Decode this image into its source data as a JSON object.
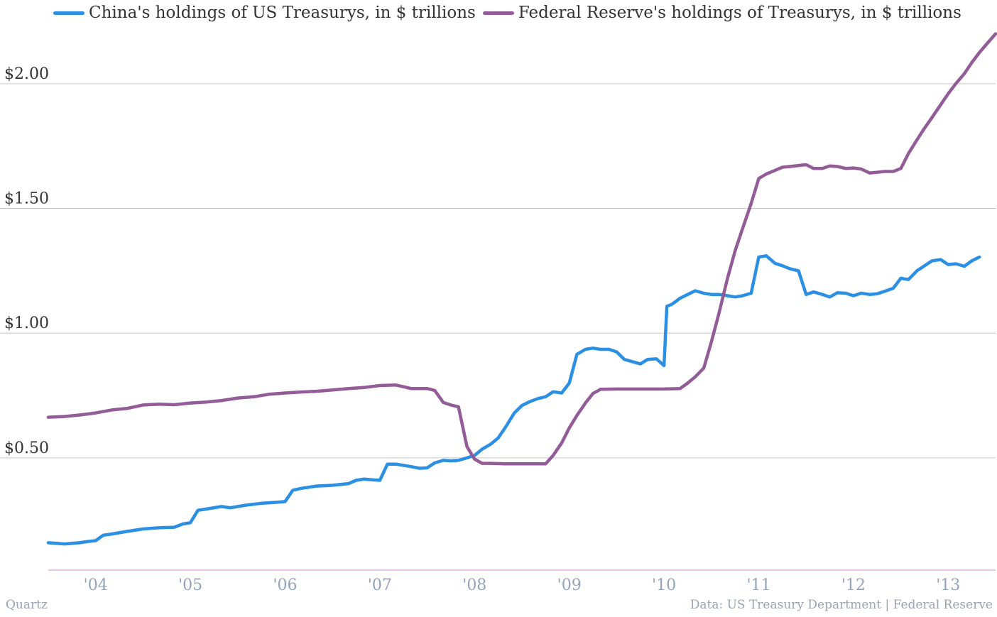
{
  "legend": {
    "china": "China's holdings of US Treasurys, in $ trillions",
    "fed": "Federal Reserve's holdings of Treasurys, in $ trillions"
  },
  "footer": {
    "source_left": "Quartz",
    "source_right": "Data: US Treasury Department | Federal Reserve"
  },
  "colors": {
    "china": "#2b8fe3",
    "fed": "#935c99",
    "grid": "#c6c6c6",
    "baseline": "#d98bd9"
  },
  "chart_data": {
    "type": "line",
    "xlabel": "",
    "ylabel": "",
    "xlim": [
      2003.5,
      2013.5
    ],
    "ylim": [
      0.05,
      2.25
    ],
    "yticks": [
      0.5,
      1.0,
      1.5,
      2.0
    ],
    "ytick_labels": [
      "$0.50",
      "$1.00",
      "$1.50",
      "$2.00"
    ],
    "xticks": [
      2004,
      2005,
      2006,
      2007,
      2008,
      2009,
      2010,
      2011,
      2012,
      2013
    ],
    "xtick_labels": [
      "'04",
      "'05",
      "'06",
      "'07",
      "'08",
      "'09",
      "'10",
      "'11",
      "'12",
      "'13"
    ],
    "grid": true,
    "legend_position": "top-left",
    "series": [
      {
        "name": "China's holdings of US Treasurys, in $ trillions",
        "color": "#2b8fe3",
        "points": [
          [
            2003.5,
            0.16
          ],
          [
            2003.67,
            0.155
          ],
          [
            2003.83,
            0.16
          ],
          [
            2003.92,
            0.165
          ],
          [
            2004.0,
            0.168
          ],
          [
            2004.08,
            0.19
          ],
          [
            2004.17,
            0.195
          ],
          [
            2004.33,
            0.205
          ],
          [
            2004.5,
            0.215
          ],
          [
            2004.67,
            0.22
          ],
          [
            2004.83,
            0.222
          ],
          [
            2004.92,
            0.235
          ],
          [
            2005.0,
            0.24
          ],
          [
            2005.08,
            0.29
          ],
          [
            2005.17,
            0.295
          ],
          [
            2005.33,
            0.305
          ],
          [
            2005.42,
            0.3
          ],
          [
            2005.58,
            0.31
          ],
          [
            2005.75,
            0.318
          ],
          [
            2005.92,
            0.322
          ],
          [
            2006.0,
            0.325
          ],
          [
            2006.08,
            0.37
          ],
          [
            2006.17,
            0.378
          ],
          [
            2006.33,
            0.387
          ],
          [
            2006.5,
            0.39
          ],
          [
            2006.67,
            0.397
          ],
          [
            2006.75,
            0.41
          ],
          [
            2006.83,
            0.415
          ],
          [
            2006.92,
            0.412
          ],
          [
            2007.0,
            0.41
          ],
          [
            2007.08,
            0.475
          ],
          [
            2007.17,
            0.475
          ],
          [
            2007.33,
            0.465
          ],
          [
            2007.42,
            0.458
          ],
          [
            2007.5,
            0.46
          ],
          [
            2007.58,
            0.48
          ],
          [
            2007.67,
            0.49
          ],
          [
            2007.75,
            0.488
          ],
          [
            2007.83,
            0.49
          ],
          [
            2007.92,
            0.5
          ],
          [
            2008.0,
            0.51
          ],
          [
            2008.08,
            0.535
          ],
          [
            2008.17,
            0.555
          ],
          [
            2008.25,
            0.58
          ],
          [
            2008.33,
            0.625
          ],
          [
            2008.42,
            0.68
          ],
          [
            2008.5,
            0.71
          ],
          [
            2008.58,
            0.725
          ],
          [
            2008.67,
            0.738
          ],
          [
            2008.75,
            0.745
          ],
          [
            2008.83,
            0.765
          ],
          [
            2008.92,
            0.76
          ],
          [
            2009.0,
            0.8
          ],
          [
            2009.08,
            0.915
          ],
          [
            2009.17,
            0.935
          ],
          [
            2009.25,
            0.94
          ],
          [
            2009.33,
            0.935
          ],
          [
            2009.42,
            0.935
          ],
          [
            2009.5,
            0.925
          ],
          [
            2009.58,
            0.895
          ],
          [
            2009.67,
            0.885
          ],
          [
            2009.75,
            0.877
          ],
          [
            2009.83,
            0.895
          ],
          [
            2009.92,
            0.897
          ],
          [
            2010.0,
            0.87
          ],
          [
            2010.03,
            1.108
          ],
          [
            2010.08,
            1.115
          ],
          [
            2010.17,
            1.14
          ],
          [
            2010.25,
            1.155
          ],
          [
            2010.33,
            1.17
          ],
          [
            2010.42,
            1.16
          ],
          [
            2010.5,
            1.155
          ],
          [
            2010.58,
            1.155
          ],
          [
            2010.67,
            1.15
          ],
          [
            2010.75,
            1.145
          ],
          [
            2010.83,
            1.15
          ],
          [
            2010.92,
            1.16
          ],
          [
            2011.0,
            1.305
          ],
          [
            2011.08,
            1.31
          ],
          [
            2011.17,
            1.28
          ],
          [
            2011.25,
            1.27
          ],
          [
            2011.33,
            1.258
          ],
          [
            2011.42,
            1.25
          ],
          [
            2011.5,
            1.155
          ],
          [
            2011.58,
            1.165
          ],
          [
            2011.67,
            1.155
          ],
          [
            2011.75,
            1.145
          ],
          [
            2011.83,
            1.162
          ],
          [
            2011.92,
            1.16
          ],
          [
            2012.0,
            1.15
          ],
          [
            2012.08,
            1.16
          ],
          [
            2012.17,
            1.155
          ],
          [
            2012.25,
            1.158
          ],
          [
            2012.33,
            1.168
          ],
          [
            2012.42,
            1.18
          ],
          [
            2012.5,
            1.22
          ],
          [
            2012.58,
            1.215
          ],
          [
            2012.67,
            1.25
          ],
          [
            2012.75,
            1.27
          ],
          [
            2012.83,
            1.29
          ],
          [
            2012.92,
            1.295
          ],
          [
            2013.0,
            1.275
          ],
          [
            2013.08,
            1.278
          ],
          [
            2013.17,
            1.268
          ],
          [
            2013.25,
            1.29
          ],
          [
            2013.33,
            1.305
          ]
        ]
      },
      {
        "name": "Federal Reserve's holdings of Treasurys, in $ trillions",
        "color": "#935c99",
        "points": [
          [
            2003.5,
            0.663
          ],
          [
            2003.67,
            0.666
          ],
          [
            2003.83,
            0.672
          ],
          [
            2004.0,
            0.68
          ],
          [
            2004.17,
            0.692
          ],
          [
            2004.33,
            0.698
          ],
          [
            2004.5,
            0.712
          ],
          [
            2004.67,
            0.715
          ],
          [
            2004.83,
            0.713
          ],
          [
            2005.0,
            0.72
          ],
          [
            2005.17,
            0.724
          ],
          [
            2005.33,
            0.73
          ],
          [
            2005.5,
            0.74
          ],
          [
            2005.67,
            0.745
          ],
          [
            2005.83,
            0.755
          ],
          [
            2006.0,
            0.76
          ],
          [
            2006.17,
            0.764
          ],
          [
            2006.33,
            0.767
          ],
          [
            2006.5,
            0.772
          ],
          [
            2006.67,
            0.778
          ],
          [
            2006.83,
            0.782
          ],
          [
            2007.0,
            0.79
          ],
          [
            2007.17,
            0.792
          ],
          [
            2007.33,
            0.778
          ],
          [
            2007.5,
            0.778
          ],
          [
            2007.58,
            0.77
          ],
          [
            2007.67,
            0.722
          ],
          [
            2007.75,
            0.712
          ],
          [
            2007.83,
            0.705
          ],
          [
            2007.92,
            0.545
          ],
          [
            2008.0,
            0.495
          ],
          [
            2008.08,
            0.478
          ],
          [
            2008.17,
            0.478
          ],
          [
            2008.33,
            0.476
          ],
          [
            2008.5,
            0.476
          ],
          [
            2008.67,
            0.476
          ],
          [
            2008.75,
            0.476
          ],
          [
            2008.83,
            0.51
          ],
          [
            2008.92,
            0.56
          ],
          [
            2009.0,
            0.62
          ],
          [
            2009.08,
            0.67
          ],
          [
            2009.17,
            0.72
          ],
          [
            2009.25,
            0.758
          ],
          [
            2009.33,
            0.775
          ],
          [
            2009.5,
            0.776
          ],
          [
            2009.67,
            0.776
          ],
          [
            2009.83,
            0.776
          ],
          [
            2010.0,
            0.776
          ],
          [
            2010.17,
            0.778
          ],
          [
            2010.25,
            0.8
          ],
          [
            2010.33,
            0.825
          ],
          [
            2010.42,
            0.86
          ],
          [
            2010.5,
            0.965
          ],
          [
            2010.58,
            1.08
          ],
          [
            2010.67,
            1.22
          ],
          [
            2010.75,
            1.33
          ],
          [
            2010.83,
            1.42
          ],
          [
            2010.92,
            1.52
          ],
          [
            2011.0,
            1.62
          ],
          [
            2011.08,
            1.638
          ],
          [
            2011.17,
            1.652
          ],
          [
            2011.25,
            1.665
          ],
          [
            2011.33,
            1.668
          ],
          [
            2011.42,
            1.672
          ],
          [
            2011.5,
            1.675
          ],
          [
            2011.58,
            1.66
          ],
          [
            2011.67,
            1.66
          ],
          [
            2011.75,
            1.67
          ],
          [
            2011.83,
            1.668
          ],
          [
            2011.92,
            1.66
          ],
          [
            2012.0,
            1.662
          ],
          [
            2012.08,
            1.658
          ],
          [
            2012.17,
            1.642
          ],
          [
            2012.25,
            1.645
          ],
          [
            2012.33,
            1.648
          ],
          [
            2012.42,
            1.648
          ],
          [
            2012.5,
            1.66
          ],
          [
            2012.58,
            1.72
          ],
          [
            2012.67,
            1.775
          ],
          [
            2012.75,
            1.822
          ],
          [
            2012.83,
            1.865
          ],
          [
            2012.92,
            1.915
          ],
          [
            2013.0,
            1.96
          ],
          [
            2013.08,
            2.0
          ],
          [
            2013.17,
            2.04
          ],
          [
            2013.25,
            2.085
          ],
          [
            2013.33,
            2.125
          ],
          [
            2013.42,
            2.165
          ],
          [
            2013.5,
            2.2
          ]
        ]
      }
    ]
  }
}
